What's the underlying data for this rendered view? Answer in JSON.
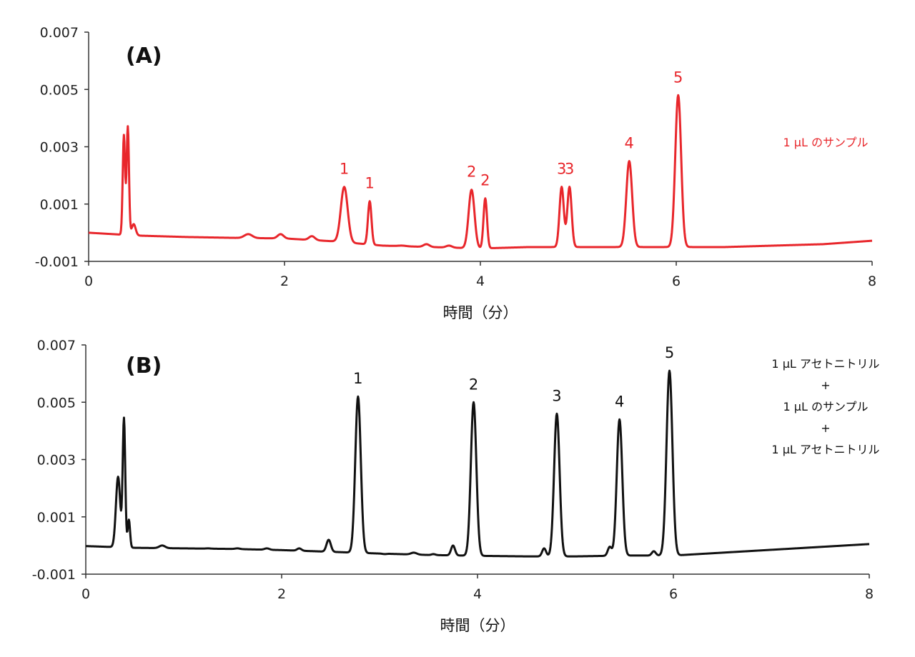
{
  "chart_data": [
    {
      "type": "line",
      "panel_label": "(A)",
      "xlabel": "時間（分）",
      "ylabel": "",
      "xlim": [
        0,
        8
      ],
      "ylim": [
        -0.001,
        0.007
      ],
      "x_ticks": [
        "0",
        "2",
        "4",
        "6",
        "8"
      ],
      "y_ticks": [
        "-0.001",
        "0.001",
        "0.003",
        "0.005",
        "0.007"
      ],
      "grid": false,
      "color": "#e8262b",
      "annotation": [
        "1 µL のサンプル"
      ],
      "baseline": [
        [
          0,
          0.0
        ],
        [
          0.5,
          -0.0001
        ],
        [
          1.0,
          -0.00015
        ],
        [
          1.5,
          -0.00018
        ],
        [
          2.0,
          -0.0002
        ],
        [
          2.5,
          -0.0003
        ],
        [
          3.0,
          -0.00045
        ],
        [
          3.5,
          -0.0005
        ],
        [
          4.0,
          -0.00055
        ],
        [
          4.5,
          -0.0005
        ],
        [
          5.0,
          -0.0005
        ],
        [
          5.5,
          -0.0005
        ],
        [
          6.0,
          -0.0005
        ],
        [
          6.5,
          -0.0005
        ],
        [
          7.0,
          -0.00045
        ],
        [
          7.5,
          -0.0004
        ],
        [
          8.0,
          -0.00028
        ]
      ],
      "peaks": [
        {
          "x": 0.36,
          "y": 0.0034,
          "width": 0.012,
          "label": ""
        },
        {
          "x": 0.4,
          "y": 0.0037,
          "width": 0.012,
          "label": ""
        },
        {
          "x": 0.46,
          "y": 0.0003,
          "width": 0.02,
          "label": ""
        },
        {
          "x": 1.63,
          "y": -5e-05,
          "width": 0.04,
          "label": ""
        },
        {
          "x": 1.96,
          "y": -5e-05,
          "width": 0.03,
          "label": ""
        },
        {
          "x": 2.28,
          "y": -0.00012,
          "width": 0.03,
          "label": ""
        },
        {
          "x": 2.61,
          "y": 0.0016,
          "width": 0.035,
          "label": "1"
        },
        {
          "x": 2.87,
          "y": 0.0011,
          "width": 0.018,
          "label": "1"
        },
        {
          "x": 3.2,
          "y": -0.00045,
          "width": 0.04,
          "label": ""
        },
        {
          "x": 3.45,
          "y": -0.0004,
          "width": 0.03,
          "label": ""
        },
        {
          "x": 3.68,
          "y": -0.00045,
          "width": 0.03,
          "label": ""
        },
        {
          "x": 3.91,
          "y": 0.0015,
          "width": 0.03,
          "label": "2"
        },
        {
          "x": 4.05,
          "y": 0.0012,
          "width": 0.018,
          "label": "2"
        },
        {
          "x": 4.83,
          "y": 0.0016,
          "width": 0.022,
          "label": "3"
        },
        {
          "x": 4.91,
          "y": 0.0016,
          "width": 0.022,
          "label": "3"
        },
        {
          "x": 5.52,
          "y": 0.0025,
          "width": 0.03,
          "label": "4"
        },
        {
          "x": 6.02,
          "y": 0.0048,
          "width": 0.03,
          "label": "5"
        }
      ]
    },
    {
      "type": "line",
      "panel_label": "(B)",
      "xlabel": "時間（分）",
      "ylabel": "",
      "xlim": [
        0,
        8
      ],
      "ylim": [
        -0.001,
        0.007
      ],
      "x_ticks": [
        "0",
        "2",
        "4",
        "6",
        "8"
      ],
      "y_ticks": [
        "-0.001",
        "0.001",
        "0.003",
        "0.005",
        "0.007"
      ],
      "grid": false,
      "color": "#111111",
      "annotation": [
        "1 µL アセトニトリル",
        "+",
        "1 µL のサンプル",
        "+",
        "1 µL アセトニトリル"
      ],
      "baseline": [
        [
          0,
          -2e-05
        ],
        [
          0.5,
          -8e-05
        ],
        [
          1.0,
          -0.0001
        ],
        [
          1.5,
          -0.00012
        ],
        [
          2.0,
          -0.00016
        ],
        [
          2.5,
          -0.00022
        ],
        [
          3.0,
          -0.00028
        ],
        [
          3.5,
          -0.00033
        ],
        [
          4.0,
          -0.00036
        ],
        [
          4.5,
          -0.00038
        ],
        [
          5.0,
          -0.00038
        ],
        [
          5.5,
          -0.00035
        ],
        [
          6.0,
          -0.00035
        ],
        [
          6.5,
          -0.00025
        ],
        [
          7.0,
          -0.00015
        ],
        [
          7.5,
          -5e-05
        ],
        [
          8.0,
          5e-05
        ]
      ],
      "peaks": [
        {
          "x": 0.33,
          "y": 0.0024,
          "width": 0.022,
          "label": ""
        },
        {
          "x": 0.39,
          "y": 0.0044,
          "width": 0.013,
          "label": ""
        },
        {
          "x": 0.44,
          "y": 0.0009,
          "width": 0.012,
          "label": ""
        },
        {
          "x": 0.78,
          "y": 0.0,
          "width": 0.03,
          "label": ""
        },
        {
          "x": 1.02,
          "y": -0.0001,
          "width": 0.025,
          "label": ""
        },
        {
          "x": 1.25,
          "y": -0.0001,
          "width": 0.025,
          "label": ""
        },
        {
          "x": 1.55,
          "y": -0.0001,
          "width": 0.025,
          "label": ""
        },
        {
          "x": 1.85,
          "y": -0.0001,
          "width": 0.025,
          "label": ""
        },
        {
          "x": 2.18,
          "y": -0.0001,
          "width": 0.022,
          "label": ""
        },
        {
          "x": 2.48,
          "y": 0.0002,
          "width": 0.022,
          "label": ""
        },
        {
          "x": 2.78,
          "y": 0.0052,
          "width": 0.028,
          "label": "1"
        },
        {
          "x": 3.05,
          "y": -0.0003,
          "width": 0.02,
          "label": ""
        },
        {
          "x": 3.35,
          "y": -0.00025,
          "width": 0.03,
          "label": ""
        },
        {
          "x": 3.55,
          "y": -0.0003,
          "width": 0.02,
          "label": ""
        },
        {
          "x": 3.75,
          "y": 0.0,
          "width": 0.02,
          "label": ""
        },
        {
          "x": 3.96,
          "y": 0.005,
          "width": 0.028,
          "label": "2"
        },
        {
          "x": 4.68,
          "y": -0.0001,
          "width": 0.02,
          "label": ""
        },
        {
          "x": 4.81,
          "y": 0.0046,
          "width": 0.028,
          "label": "3"
        },
        {
          "x": 5.35,
          "y": -5e-05,
          "width": 0.02,
          "label": ""
        },
        {
          "x": 5.45,
          "y": 0.0044,
          "width": 0.028,
          "label": "4"
        },
        {
          "x": 5.8,
          "y": -0.0002,
          "width": 0.02,
          "label": ""
        },
        {
          "x": 5.96,
          "y": 0.0061,
          "width": 0.03,
          "label": "5"
        }
      ]
    }
  ]
}
